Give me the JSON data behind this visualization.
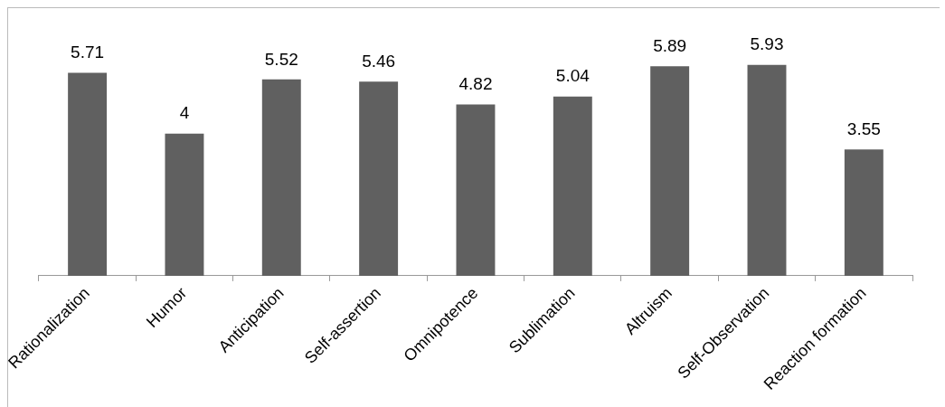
{
  "chart_data": {
    "type": "bar",
    "categories": [
      "Rationalization",
      "Humor",
      "Anticipation",
      "Self-assertion",
      "Omnipotence",
      "Sublimation",
      "Altruism",
      "Self-Observation",
      "Reaction formation"
    ],
    "values": [
      5.71,
      4,
      5.52,
      5.46,
      4.82,
      5.04,
      5.89,
      5.93,
      3.55
    ],
    "color": "#606060",
    "data_labels": true,
    "grid": false,
    "legend": false
  }
}
